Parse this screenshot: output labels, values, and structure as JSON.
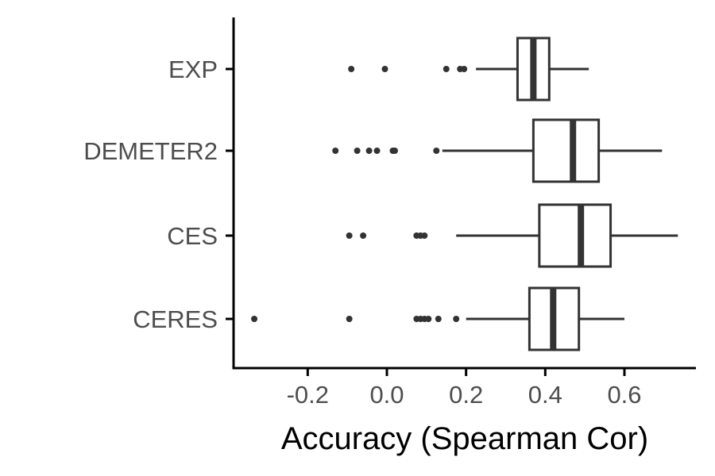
{
  "chart_data": {
    "type": "boxplot",
    "orientation": "horizontal",
    "xlabel": "Accuracy (Spearman Cor)",
    "ylabel": "",
    "xlim": [
      -0.42,
      0.78
    ],
    "x_ticks": [
      -0.2,
      0.0,
      0.2,
      0.4,
      0.6
    ],
    "x_tick_labels": [
      "-0.2",
      "0.0",
      "0.2",
      "0.4",
      "0.6"
    ],
    "grid": false,
    "legend": "none",
    "colors": {
      "stroke": "#333333",
      "axis": "#000000",
      "tick_text": "#4d4d4d"
    },
    "categories": [
      "EXP",
      "DEMETER2",
      "CES",
      "CERES"
    ],
    "boxes": [
      {
        "category": "EXP",
        "whisker_low": 0.225,
        "q1": 0.33,
        "median": 0.37,
        "q3": 0.41,
        "whisker_high": 0.51,
        "outliers": [
          -0.09,
          -0.005,
          0.15,
          0.185,
          0.195
        ]
      },
      {
        "category": "DEMETER2",
        "whisker_low": 0.14,
        "q1": 0.37,
        "median": 0.47,
        "q3": 0.535,
        "whisker_high": 0.695,
        "outliers": [
          -0.13,
          -0.075,
          -0.045,
          -0.025,
          0.015,
          0.02,
          0.125
        ]
      },
      {
        "category": "CES",
        "whisker_low": 0.175,
        "q1": 0.385,
        "median": 0.49,
        "q3": 0.565,
        "whisker_high": 0.735,
        "outliers": [
          -0.095,
          -0.06,
          0.075,
          0.085,
          0.095
        ]
      },
      {
        "category": "CERES",
        "whisker_low": 0.2,
        "q1": 0.36,
        "median": 0.42,
        "q3": 0.485,
        "whisker_high": 0.6,
        "outliers": [
          -0.335,
          -0.095,
          0.075,
          0.085,
          0.095,
          0.105,
          0.13,
          0.175
        ]
      }
    ]
  }
}
